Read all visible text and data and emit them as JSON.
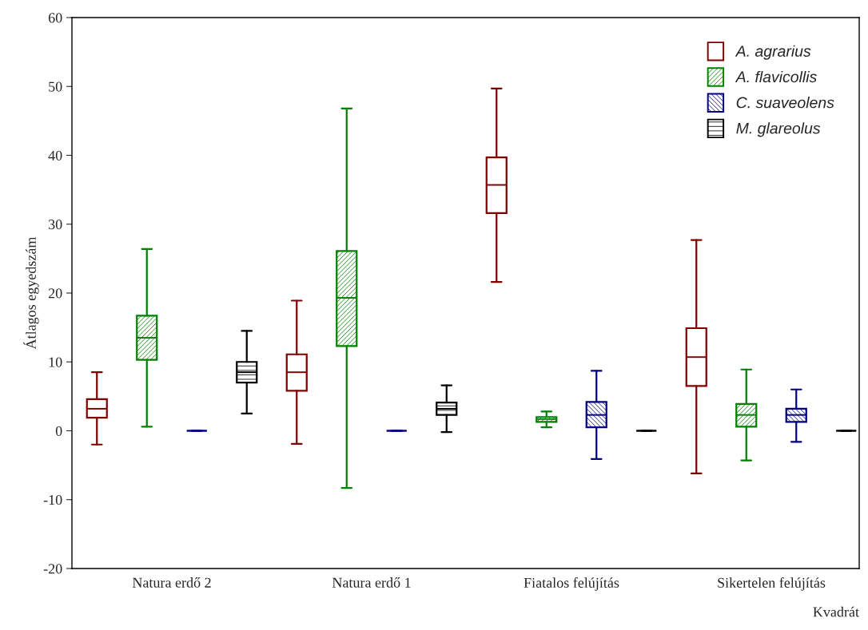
{
  "chart_data": {
    "type": "box",
    "xlabel": "Kvadrát",
    "ylabel": "Átlagos egyedszám",
    "categories": [
      "Natura erdő 2",
      "Natura erdő 1",
      "Fiatalos felújítás",
      "Sikertelen felújítás"
    ],
    "ylim": [
      -20,
      60
    ],
    "yticks": [
      -20,
      -10,
      0,
      10,
      20,
      30,
      40,
      50,
      60
    ],
    "grid": false,
    "legend": "top right",
    "series": [
      {
        "name": "A. agrarius",
        "color": "#800000",
        "boxes": [
          {
            "low": -2.0,
            "q1": 1.9,
            "median": 3.2,
            "q3": 4.6,
            "high": 8.5
          },
          {
            "low": -1.9,
            "q1": 5.8,
            "median": 8.5,
            "q3": 11.1,
            "high": 18.9
          },
          {
            "low": 21.6,
            "q1": 31.6,
            "median": 35.7,
            "q3": 39.7,
            "high": 49.7
          },
          {
            "low": -6.2,
            "q1": 6.5,
            "median": 10.7,
            "q3": 14.9,
            "high": 27.7
          }
        ]
      },
      {
        "name": "A. flavicollis",
        "color": "#008000",
        "boxes": [
          {
            "low": 0.6,
            "q1": 10.3,
            "median": 13.5,
            "q3": 16.7,
            "high": 26.4
          },
          {
            "low": -8.3,
            "q1": 12.3,
            "median": 19.3,
            "q3": 26.1,
            "high": 46.8
          },
          {
            "low": 0.5,
            "q1": 1.3,
            "median": 1.7,
            "q3": 2.0,
            "high": 2.8
          },
          {
            "low": -4.3,
            "q1": 0.6,
            "median": 2.3,
            "q3": 3.9,
            "high": 8.9
          }
        ]
      },
      {
        "name": "C. suaveolens",
        "color": "#000080",
        "boxes": [
          {
            "low": 0,
            "q1": 0,
            "median": 0,
            "q3": 0,
            "high": 0
          },
          {
            "low": 0,
            "q1": 0,
            "median": 0,
            "q3": 0,
            "high": 0
          },
          {
            "low": -4.1,
            "q1": 0.5,
            "median": 2.3,
            "q3": 4.2,
            "high": 8.7
          },
          {
            "low": -1.6,
            "q1": 1.3,
            "median": 2.3,
            "q3": 3.2,
            "high": 6.0
          }
        ]
      },
      {
        "name": "M. glareolus",
        "color": "#000000",
        "boxes": [
          {
            "low": 2.5,
            "q1": 7.0,
            "median": 8.5,
            "q3": 10.0,
            "high": 14.5
          },
          {
            "low": -0.2,
            "q1": 2.3,
            "median": 3.2,
            "q3": 4.1,
            "high": 6.6
          },
          {
            "low": 0,
            "q1": 0,
            "median": 0,
            "q3": 0,
            "high": 0
          },
          {
            "low": 0,
            "q1": 0,
            "median": 0,
            "q3": 0,
            "high": 0
          }
        ]
      }
    ]
  }
}
